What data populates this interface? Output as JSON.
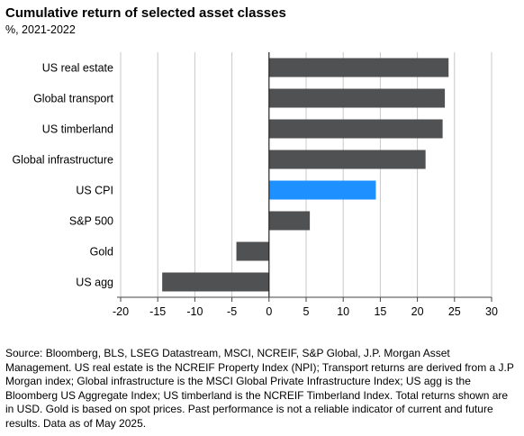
{
  "title": "Cumulative return of selected asset classes",
  "subtitle": "%, 2021-2022",
  "chart_data": {
    "type": "bar",
    "orientation": "horizontal",
    "categories": [
      "US real estate",
      "Global transport",
      "US timberland",
      "Global infrastructure",
      "US CPI",
      "S&P 500",
      "Gold",
      "US agg"
    ],
    "values": [
      24.2,
      23.7,
      23.4,
      21.1,
      14.4,
      5.5,
      -4.4,
      -14.4
    ],
    "highlight_category": "US CPI",
    "colors": {
      "bar": "#505153",
      "highlight": "#1e90ff",
      "grid": "#c8c8c8",
      "zero_line": "#222222"
    },
    "xlim": [
      -20,
      30
    ],
    "xticks": [
      -20,
      -15,
      -10,
      -5,
      0,
      5,
      10,
      15,
      20,
      25,
      30
    ],
    "grid": "vertical",
    "legend": "none",
    "xlabel": "",
    "ylabel": ""
  },
  "source": "Source: Bloomberg, BLS, LSEG Datastream, MSCI, NCREIF, S&P Global, J.P. Morgan Asset Management. US real estate is the NCREIF Property Index (NPI); Transport returns are derived from a J.P Morgan index; Global infrastructure is the MSCI Global Private Infrastructure Index; US agg is the Bloomberg US Aggregate Index; US timberland is the NCREIF Timberland Index. Total returns shown are in USD. Gold is based on spot prices. Past performance is not a reliable indicator of current and future results. Data as of May 2025."
}
